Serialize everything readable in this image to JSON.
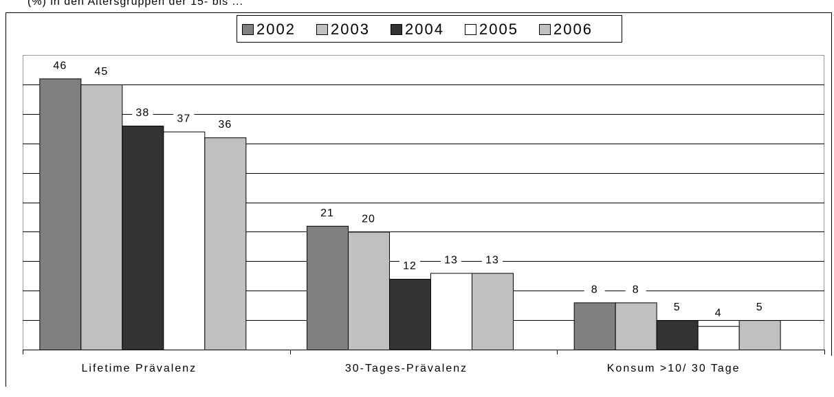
{
  "caption_fragment": "(%) in den Altersgruppen der 15- bis ...",
  "chart_data": {
    "type": "bar",
    "categories": [
      "Lifetime Prävalenz",
      "30-Tages-Prävalenz",
      "Konsum >10/ 30 Tage"
    ],
    "series": [
      {
        "name": "2002",
        "color": "#808080",
        "values": [
          46,
          21,
          8
        ]
      },
      {
        "name": "2003",
        "color": "#c0c0c0",
        "values": [
          45,
          20,
          8
        ]
      },
      {
        "name": "2004",
        "color": "#333333",
        "values": [
          38,
          12,
          5
        ]
      },
      {
        "name": "2005",
        "color": "#ffffff",
        "values": [
          37,
          13,
          4
        ]
      },
      {
        "name": "2006",
        "color": "#c0c0c0",
        "values": [
          36,
          13,
          5
        ]
      }
    ],
    "ylim": [
      0,
      50
    ],
    "grid": true,
    "legend_position": "top-center",
    "data_labels": true
  }
}
